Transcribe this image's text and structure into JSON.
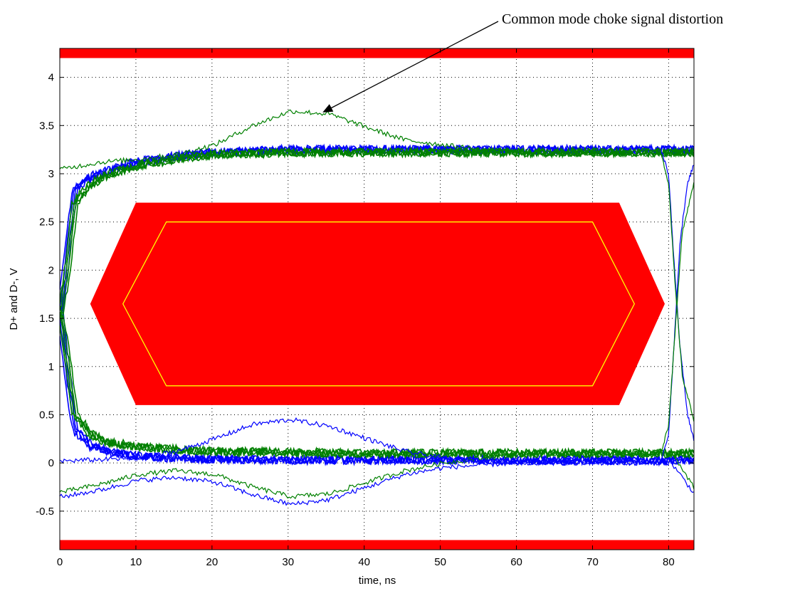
{
  "chart_data": {
    "type": "line",
    "title": "",
    "xlabel": "time, ns",
    "ylabel": "D+ and D-, V",
    "xlim": [
      0,
      83.33
    ],
    "ylim": [
      -0.9,
      4.3
    ],
    "xticks": [
      0,
      10,
      20,
      30,
      40,
      50,
      60,
      70,
      80
    ],
    "yticks": [
      -0.5,
      0,
      0.5,
      1,
      1.5,
      2,
      2.5,
      3,
      3.5,
      4
    ],
    "grid": true,
    "grid_style": "dotted",
    "annotation": {
      "text": "Common mode choke signal distortion",
      "points_to": {
        "x": 34.8,
        "y": 3.6
      }
    },
    "masks": [
      {
        "name": "upper_limit_band",
        "color": "#ff0000",
        "y_range": [
          4.2,
          4.3
        ]
      },
      {
        "name": "lower_limit_band",
        "color": "#ff0000",
        "y_range": [
          -0.9,
          -0.8
        ]
      },
      {
        "name": "eye_mask_outer",
        "color": "#ff0000",
        "points": [
          [
            4.0,
            1.65
          ],
          [
            10.0,
            2.7
          ],
          [
            73.5,
            2.7
          ],
          [
            79.5,
            1.65
          ],
          [
            73.5,
            0.6
          ],
          [
            10.0,
            0.6
          ]
        ]
      },
      {
        "name": "eye_mask_inner",
        "color": "#ffff00",
        "points": [
          [
            8.3,
            1.65
          ],
          [
            14.0,
            2.5
          ],
          [
            70.0,
            2.5
          ],
          [
            75.5,
            1.65
          ],
          [
            70.0,
            0.8
          ],
          [
            14.0,
            0.8
          ]
        ]
      }
    ],
    "series_colors": {
      "blue": "#0000ff",
      "green": "#008000"
    },
    "series": [
      {
        "color": "#0000ff",
        "kind": "high",
        "x": [
          0,
          1,
          2,
          4,
          6,
          10,
          15,
          20,
          30,
          40,
          50,
          60,
          70,
          79,
          83.3
        ],
        "y": [
          1.5,
          2.2,
          2.85,
          2.96,
          3.02,
          3.12,
          3.18,
          3.22,
          3.25,
          3.25,
          3.25,
          3.25,
          3.25,
          3.25,
          3.25
        ]
      },
      {
        "color": "#0000ff",
        "kind": "low",
        "x": [
          0,
          1,
          2,
          4,
          6,
          10,
          15,
          20,
          30,
          40,
          50,
          60,
          70,
          79,
          83.3
        ],
        "y": [
          1.6,
          0.9,
          0.35,
          0.18,
          0.12,
          0.07,
          0.05,
          0.04,
          0.03,
          0.03,
          0.03,
          0.03,
          0.03,
          0.03,
          0.03
        ]
      },
      {
        "color": "#008000",
        "kind": "high",
        "x": [
          0,
          1,
          2,
          4,
          6,
          10,
          15,
          20,
          30,
          40,
          50,
          60,
          70,
          79,
          83.3
        ],
        "y": [
          1.5,
          2.0,
          2.7,
          2.88,
          2.98,
          3.08,
          3.15,
          3.2,
          3.22,
          3.22,
          3.22,
          3.22,
          3.22,
          3.22,
          3.22
        ]
      },
      {
        "color": "#008000",
        "kind": "low",
        "x": [
          0,
          1,
          2,
          4,
          6,
          10,
          15,
          20,
          30,
          40,
          50,
          60,
          70,
          79,
          83.3
        ],
        "y": [
          1.6,
          1.1,
          0.5,
          0.3,
          0.22,
          0.17,
          0.14,
          0.12,
          0.11,
          0.1,
          0.1,
          0.1,
          0.1,
          0.1,
          0.1
        ]
      },
      {
        "color": "#008000",
        "kind": "distortion_high",
        "x": [
          0,
          5,
          10,
          15,
          20,
          25,
          30,
          35,
          40,
          45,
          50,
          55,
          60,
          65,
          70,
          80
        ],
        "y": [
          3.05,
          3.12,
          3.15,
          3.2,
          3.3,
          3.5,
          3.65,
          3.62,
          3.48,
          3.35,
          3.3,
          3.25,
          3.22,
          3.2,
          3.2,
          3.2
        ]
      },
      {
        "color": "#0000ff",
        "kind": "distortion_low",
        "x": [
          0,
          5,
          10,
          15,
          20,
          25,
          30,
          35,
          40,
          45,
          50,
          55,
          60,
          70,
          80,
          83.3
        ],
        "y": [
          -0.35,
          -0.28,
          -0.18,
          -0.15,
          -0.2,
          -0.33,
          -0.43,
          -0.38,
          -0.25,
          -0.12,
          -0.05,
          -0.02,
          0.0,
          0.0,
          0.0,
          -0.35
        ]
      },
      {
        "color": "#008000",
        "kind": "distortion_low",
        "x": [
          0,
          5,
          10,
          15,
          20,
          25,
          30,
          35,
          40,
          45,
          50,
          55,
          60,
          70,
          80,
          83.3
        ],
        "y": [
          -0.3,
          -0.22,
          -0.12,
          -0.08,
          -0.12,
          -0.25,
          -0.35,
          -0.32,
          -0.2,
          -0.08,
          0.0,
          0.05,
          0.08,
          0.1,
          0.1,
          -0.3
        ]
      },
      {
        "color": "#0000ff",
        "kind": "distortion_bump",
        "x": [
          0,
          10,
          15,
          20,
          25,
          30,
          35,
          40,
          45,
          50,
          55,
          60,
          70,
          80
        ],
        "y": [
          0.02,
          0.05,
          0.12,
          0.25,
          0.4,
          0.45,
          0.38,
          0.25,
          0.12,
          0.05,
          0.02,
          0.0,
          0.0,
          0.0
        ]
      },
      {
        "color": "#0000ff",
        "kind": "rise_edge",
        "x": [
          79.0,
          80.0,
          80.7,
          81.5,
          82.5,
          83.3
        ],
        "y": [
          0.03,
          0.3,
          1.2,
          2.3,
          2.9,
          3.1
        ]
      },
      {
        "color": "#0000ff",
        "kind": "fall_edge",
        "x": [
          79.0,
          80.0,
          80.7,
          81.5,
          82.5,
          83.3
        ],
        "y": [
          3.25,
          3.0,
          2.1,
          1.2,
          0.5,
          0.25
        ]
      },
      {
        "color": "#008000",
        "kind": "rise_edge",
        "x": [
          79.0,
          80.0,
          80.8,
          81.8,
          83.3
        ],
        "y": [
          0.1,
          0.4,
          1.3,
          2.4,
          2.9
        ]
      },
      {
        "color": "#008000",
        "kind": "fall_edge",
        "x": [
          79.0,
          80.0,
          80.8,
          81.8,
          83.3
        ],
        "y": [
          3.22,
          2.9,
          1.9,
          0.9,
          0.45
        ]
      }
    ]
  }
}
